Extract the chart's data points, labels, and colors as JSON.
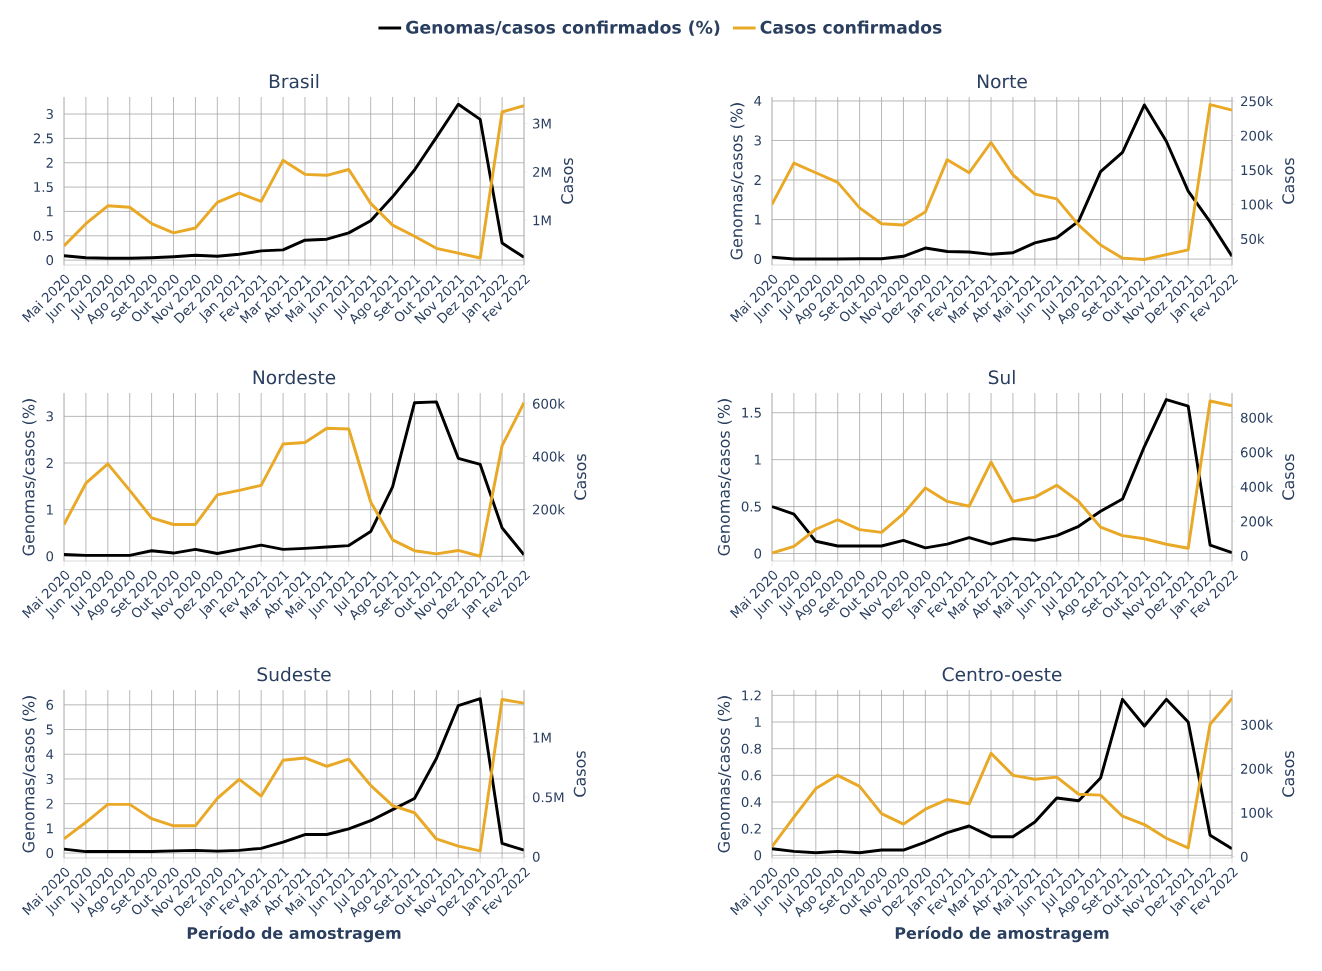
{
  "chart_data": [
    {
      "type": "line",
      "title": "Brasil",
      "categories": [
        "Mai 2020",
        "Jun 2020",
        "Jul 2020",
        "Ago 2020",
        "Set 2020",
        "Out 2020",
        "Nov 2020",
        "Dez 2020",
        "Jan 2021",
        "Fev 2021",
        "Mar 2021",
        "Abr 2021",
        "Mai 2021",
        "Jun 2021",
        "Jul 2021",
        "Ago 2021",
        "Set 2021",
        "Out 2021",
        "Nov 2021",
        "Dez 2021",
        "Jan 2022",
        "Fev 2022"
      ],
      "y2label": "Casos",
      "ylim": [
        -0.1,
        3.35
      ],
      "yticks": [
        0,
        0.5,
        1,
        1.5,
        2,
        2.5,
        3
      ],
      "y2lim": [
        75000,
        3550000
      ],
      "y2ticks": [
        {
          "value": 1000000,
          "label": "1M"
        },
        {
          "value": 2000000,
          "label": "2M"
        },
        {
          "value": 3000000,
          "label": "3M"
        }
      ],
      "grid": true,
      "marker": "none",
      "legend": "top",
      "series": [
        {
          "name": "Genomas/casos confirmados (%)",
          "color": "#000000",
          "values": [
            0.09,
            0.05,
            0.04,
            0.04,
            0.05,
            0.07,
            0.1,
            0.08,
            0.12,
            0.19,
            0.21,
            0.41,
            0.43,
            0.56,
            0.81,
            1.3,
            1.85,
            2.52,
            3.2,
            2.89,
            0.35,
            0.06
          ]
        },
        {
          "name": "Casos confirmados",
          "color": "#e9a825",
          "axis": "y2",
          "values": [
            470000,
            930000,
            1300000,
            1270000,
            930000,
            740000,
            840000,
            1370000,
            1560000,
            1390000,
            2240000,
            1950000,
            1930000,
            2050000,
            1350000,
            900000,
            670000,
            420000,
            320000,
            220000,
            3240000,
            3370000
          ]
        }
      ]
    },
    {
      "type": "line",
      "title": "Norte",
      "categories": [
        "Mai 2020",
        "Jun 2020",
        "Jul 2020",
        "Ago 2020",
        "Set 2020",
        "Out 2020",
        "Nov 2020",
        "Dez 2020",
        "Jan 2021",
        "Fev 2021",
        "Mar 2021",
        "Abr 2021",
        "Mai 2021",
        "Jun 2021",
        "Jul 2021",
        "Ago 2021",
        "Set 2021",
        "Out 2021",
        "Nov 2021",
        "Dez 2021",
        "Jan 2022",
        "Fev 2022"
      ],
      "ylabel": "Genomas/casos (%)",
      "y2label": "Casos",
      "ylim": [
        -0.15,
        4.1
      ],
      "yticks": [
        0,
        1,
        2,
        3,
        4
      ],
      "y2lim": [
        12000,
        256000
      ],
      "y2ticks": [
        {
          "value": 50000,
          "label": "50k"
        },
        {
          "value": 100000,
          "label": "100k"
        },
        {
          "value": 150000,
          "label": "150k"
        },
        {
          "value": 200000,
          "label": "200k"
        },
        {
          "value": 250000,
          "label": "250k"
        }
      ],
      "grid": true,
      "marker": "none",
      "series": [
        {
          "color": "#000000",
          "values": [
            0.05,
            0,
            0,
            0,
            0.01,
            0.01,
            0.07,
            0.28,
            0.19,
            0.18,
            0.12,
            0.16,
            0.41,
            0.54,
            0.96,
            2.21,
            2.7,
            3.9,
            2.98,
            1.72,
            0.94,
            0.07
          ]
        },
        {
          "color": "#e9a825",
          "axis": "y2",
          "values": [
            100000,
            160000,
            146000,
            132000,
            95000,
            72000,
            70000,
            89000,
            165000,
            146000,
            190000,
            143000,
            115000,
            108000,
            70000,
            41000,
            22000,
            20000,
            27000,
            34000,
            245000,
            237000
          ]
        }
      ]
    },
    {
      "type": "line",
      "title": "Nordeste",
      "categories": [
        "Mai 2020",
        "Jun 2020",
        "Jul 2020",
        "Ago 2020",
        "Set 2020",
        "Out 2020",
        "Nov 2020",
        "Dez 2020",
        "Jan 2021",
        "Fev 2021",
        "Mar 2021",
        "Abr 2021",
        "Mai 2021",
        "Jun 2021",
        "Jul 2021",
        "Ago 2021",
        "Set 2021",
        "Out 2021",
        "Nov 2021",
        "Dez 2021",
        "Jan 2022",
        "Fev 2022"
      ],
      "ylabel": "Genomas/casos (%)",
      "y2label": "Casos",
      "ylim": [
        -0.1,
        3.5
      ],
      "yticks": [
        0,
        1,
        2,
        3
      ],
      "y2lim": [
        5000,
        640000
      ],
      "y2ticks": [
        {
          "value": 200000,
          "label": "200k"
        },
        {
          "value": 400000,
          "label": "400k"
        },
        {
          "value": 600000,
          "label": "600k"
        }
      ],
      "grid": true,
      "marker": "none",
      "series": [
        {
          "color": "#000000",
          "values": [
            0.04,
            0.02,
            0.02,
            0.02,
            0.12,
            0.07,
            0.15,
            0.06,
            0.15,
            0.24,
            0.15,
            0.17,
            0.2,
            0.23,
            0.53,
            1.49,
            3.29,
            3.31,
            2.1,
            1.97,
            0.61,
            0.03
          ]
        },
        {
          "color": "#e9a825",
          "axis": "y2",
          "values": [
            143000,
            299000,
            372000,
            272000,
            168000,
            143000,
            143000,
            255000,
            272000,
            291000,
            447000,
            453000,
            507000,
            504000,
            228000,
            85000,
            44000,
            32000,
            45000,
            23000,
            441000,
            603000
          ]
        }
      ]
    },
    {
      "type": "line",
      "title": "Sul",
      "categories": [
        "Mai 2020",
        "Jun 2020",
        "Jul 2020",
        "Ago 2020",
        "Set 2020",
        "Out 2020",
        "Nov 2020",
        "Dez 2020",
        "Jan 2021",
        "Fev 2021",
        "Mar 2021",
        "Abr 2021",
        "Mai 2021",
        "Jun 2021",
        "Jul 2021",
        "Ago 2021",
        "Set 2021",
        "Out 2021",
        "Nov 2021",
        "Dez 2021",
        "Jan 2022",
        "Fev 2022"
      ],
      "ylabel": "Genomas/casos (%)",
      "y2label": "Casos",
      "ylim": [
        -0.08,
        1.71
      ],
      "yticks": [
        0,
        0.5,
        1,
        1.5
      ],
      "y2lim": [
        -30000,
        943000
      ],
      "y2ticks": [
        0,
        {
          "value": 200000,
          "label": "200k"
        },
        {
          "value": 400000,
          "label": "400k"
        },
        {
          "value": 600000,
          "label": "600k"
        },
        {
          "value": 800000,
          "label": "800k"
        }
      ],
      "grid": true,
      "marker": "none",
      "series": [
        {
          "color": "#000000",
          "values": [
            0.5,
            0.42,
            0.13,
            0.08,
            0.08,
            0.08,
            0.14,
            0.06,
            0.1,
            0.17,
            0.1,
            0.16,
            0.14,
            0.19,
            0.29,
            0.45,
            0.58,
            1.14,
            1.64,
            1.57,
            0.09,
            0.01
          ]
        },
        {
          "color": "#e9a825",
          "axis": "y2",
          "values": [
            16000,
            55000,
            154000,
            209000,
            152000,
            136000,
            244000,
            393000,
            315000,
            287000,
            543000,
            315000,
            340000,
            409000,
            315000,
            166000,
            117000,
            99000,
            67000,
            44000,
            897000,
            869000
          ]
        }
      ]
    },
    {
      "type": "line",
      "title": "Sudeste",
      "categories": [
        "Mai 2020",
        "Jun 2020",
        "Jul 2020",
        "Ago 2020",
        "Set 2020",
        "Out 2020",
        "Nov 2020",
        "Dez 2020",
        "Jan 2021",
        "Fev 2021",
        "Mar 2021",
        "Abr 2021",
        "Mai 2021",
        "Jun 2021",
        "Jul 2021",
        "Ago 2021",
        "Set 2021",
        "Out 2021",
        "Nov 2021",
        "Dez 2021",
        "Jan 2022",
        "Fev 2022"
      ],
      "xlabel": "Período de amostragem",
      "ylabel": "Genomas/casos (%)",
      "y2label": "Casos",
      "ylim": [
        -0.2,
        6.6
      ],
      "yticks": [
        0,
        1,
        2,
        3,
        4,
        5,
        6
      ],
      "y2lim": [
        -10000,
        1400000
      ],
      "y2ticks": [
        0,
        {
          "value": 500000,
          "label": "0.5M"
        },
        {
          "value": 1000000,
          "label": "1M"
        }
      ],
      "grid": true,
      "marker": "none",
      "series": [
        {
          "color": "#000000",
          "values": [
            0.16,
            0.06,
            0.06,
            0.06,
            0.06,
            0.09,
            0.11,
            0.08,
            0.11,
            0.19,
            0.44,
            0.75,
            0.75,
            0.98,
            1.31,
            1.76,
            2.21,
            3.83,
            5.97,
            6.25,
            0.39,
            0.12
          ]
        },
        {
          "color": "#e9a825",
          "axis": "y2",
          "values": [
            150000,
            290000,
            440000,
            440000,
            320000,
            260000,
            260000,
            490000,
            650000,
            510000,
            810000,
            830000,
            760000,
            820000,
            600000,
            430000,
            370000,
            150000,
            90000,
            50000,
            1320000,
            1290000
          ]
        }
      ]
    },
    {
      "type": "line",
      "title": "Centro-oeste",
      "categories": [
        "Mai 2020",
        "Jun 2020",
        "Jul 2020",
        "Ago 2020",
        "Set 2020",
        "Out 2020",
        "Nov 2020",
        "Dez 2020",
        "Jan 2021",
        "Fev 2021",
        "Mar 2021",
        "Abr 2021",
        "Mai 2021",
        "Jun 2021",
        "Jul 2021",
        "Ago 2021",
        "Set 2021",
        "Out 2021",
        "Nov 2021",
        "Dez 2021",
        "Jan 2022",
        "Fev 2022"
      ],
      "xlabel": "Período de amostragem",
      "ylabel": "Genomas/casos (%)",
      "y2label": "Casos",
      "ylim": [
        -0.02,
        1.24
      ],
      "yticks": [
        0,
        0.2,
        0.4,
        0.6,
        0.8,
        1,
        1.2
      ],
      "y2lim": [
        -3000,
        379000
      ],
      "y2ticks": [
        0,
        {
          "value": 100000,
          "label": "100k"
        },
        {
          "value": 200000,
          "label": "200k"
        },
        {
          "value": 300000,
          "label": "300k"
        }
      ],
      "grid": true,
      "marker": "none",
      "series": [
        {
          "color": "#000000",
          "values": [
            0.05,
            0.03,
            0.02,
            0.03,
            0.02,
            0.04,
            0.04,
            0.1,
            0.17,
            0.22,
            0.14,
            0.14,
            0.25,
            0.43,
            0.41,
            0.58,
            1.17,
            0.97,
            1.17,
            1.0,
            0.15,
            0.05
          ]
        },
        {
          "color": "#e9a825",
          "axis": "y2",
          "values": [
            23000,
            90000,
            155000,
            185000,
            160000,
            98000,
            74000,
            108000,
            130000,
            120000,
            235000,
            185000,
            176000,
            181000,
            142000,
            140000,
            92000,
            73000,
            42000,
            20000,
            301000,
            360000
          ]
        }
      ]
    }
  ]
}
